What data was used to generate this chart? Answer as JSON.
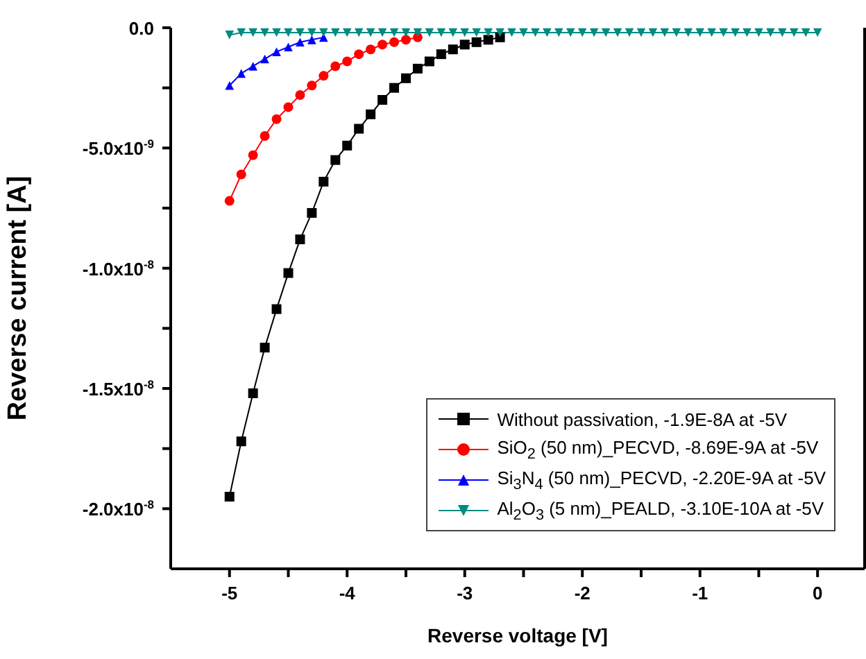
{
  "chart_data": {
    "type": "line",
    "xlabel": "Reverse voltage [V]",
    "ylabel": "Reverse current [A]",
    "x": [
      -5.0,
      -4.9,
      -4.8,
      -4.7,
      -4.6,
      -4.5,
      -4.4,
      -4.3,
      -4.2,
      -4.1,
      -4.0,
      -3.9,
      -3.8,
      -3.7,
      -3.6,
      -3.5,
      -3.4,
      -3.3,
      -3.2,
      -3.1,
      -3.0,
      -2.9,
      -2.8,
      -2.7,
      -2.6,
      -2.5,
      -2.4,
      -2.3,
      -2.2,
      -2.1,
      -2.0,
      -1.9,
      -1.8,
      -1.7,
      -1.6,
      -1.5,
      -1.4,
      -1.3,
      -1.2,
      -1.1,
      -1.0,
      -0.9,
      -0.8,
      -0.7,
      -0.6,
      -0.5,
      -0.4,
      -0.3,
      -0.2,
      -0.1,
      0.0
    ],
    "series": [
      {
        "name": "Without passivation, -1.9E-8A at -5V",
        "color": "#000000",
        "marker": "square",
        "values": [
          -1.95e-08,
          -1.72e-08,
          -1.52e-08,
          -1.33e-08,
          -1.17e-08,
          -1.02e-08,
          -8.8e-09,
          -7.7e-09,
          -6.4e-09,
          -5.5e-09,
          -4.9e-09,
          -4.2e-09,
          -3.6e-09,
          -3e-09,
          -2.5e-09,
          -2.1e-09,
          -1.7e-09,
          -1.4e-09,
          -1.1e-09,
          -9e-10,
          -7e-10,
          -6e-10,
          -5e-10,
          -4e-10,
          null,
          null,
          null,
          null,
          null,
          null,
          null,
          null,
          null,
          null,
          null,
          null,
          null,
          null,
          null,
          null,
          null,
          null,
          null,
          null,
          null,
          null,
          null,
          null,
          null,
          null,
          null
        ]
      },
      {
        "name": "SiO$_{2}$ (50 nm)_PECVD, -8.69E-9A at -5V",
        "color": "#ff0000",
        "marker": "circle",
        "values": [
          -7.2e-09,
          -6.1e-09,
          -5.3e-09,
          -4.5e-09,
          -3.8e-09,
          -3.3e-09,
          -2.8e-09,
          -2.4e-09,
          -2e-09,
          -1.6e-09,
          -1.4e-09,
          -1.1e-09,
          -9e-10,
          -7e-10,
          -6e-10,
          -5e-10,
          -4e-10,
          null,
          null,
          null,
          null,
          null,
          null,
          null,
          null,
          null,
          null,
          null,
          null,
          null,
          null,
          null,
          null,
          null,
          null,
          null,
          null,
          null,
          null,
          null,
          null,
          null,
          null,
          null,
          null,
          null,
          null,
          null,
          null,
          null,
          null
        ]
      },
      {
        "name": "Si$_{3}$N$_{4}$ (50 nm)_PECVD, -2.20E-9A at -5V",
        "color": "#0000ff",
        "marker": "triangle",
        "values": [
          -2.4e-09,
          -1.9e-09,
          -1.6e-09,
          -1.3e-09,
          -1e-09,
          -8e-10,
          -6e-10,
          -5e-10,
          -4e-10,
          null,
          null,
          null,
          null,
          null,
          null,
          null,
          null,
          null,
          null,
          null,
          null,
          null,
          null,
          null,
          null,
          null,
          null,
          null,
          null,
          null,
          null,
          null,
          null,
          null,
          null,
          null,
          null,
          null,
          null,
          null,
          null,
          null,
          null,
          null,
          null,
          null,
          null,
          null,
          null,
          null,
          null
        ]
      },
      {
        "name": "Al$_{2}$O$_{3}$ (5 nm)_PEALD, -3.10E-10A at -5V",
        "color": "#008b80",
        "marker": "triangle-down",
        "values": [
          -3e-10,
          -2e-10,
          -2e-10,
          -2e-10,
          -2e-10,
          -2e-10,
          -2e-10,
          -2e-10,
          -2e-10,
          -2e-10,
          -2e-10,
          -2e-10,
          -2e-10,
          -2e-10,
          -2e-10,
          -2e-10,
          -2e-10,
          -2e-10,
          -2e-10,
          -2e-10,
          -2e-10,
          -2e-10,
          -2e-10,
          -2e-10,
          -2e-10,
          -2e-10,
          -2e-10,
          -2e-10,
          -2e-10,
          -2e-10,
          -2e-10,
          -2e-10,
          -2e-10,
          -2e-10,
          -2e-10,
          -2e-10,
          -2e-10,
          -2e-10,
          -2e-10,
          -2e-10,
          -2e-10,
          -2e-10,
          -2e-10,
          -2e-10,
          -2e-10,
          -2e-10,
          -2e-10,
          -2e-10,
          -2e-10,
          -2e-10,
          -2e-10
        ]
      }
    ],
    "xlim": [
      -5.5,
      0.4
    ],
    "xticks": [
      -5,
      {
        "value": -4.5,
        "label": null
      },
      -4,
      {
        "value": -3.5,
        "label": null
      },
      -3,
      {
        "value": -2.5,
        "label": null
      },
      -2,
      {
        "value": -1.5,
        "label": null
      },
      -1,
      {
        "value": -0.5,
        "label": null
      },
      0
    ],
    "ylim": [
      -2.25e-08,
      0
    ],
    "yticks": [
      {
        "value": -2e-08,
        "label": "-2.0x10$^{-8}$"
      },
      {
        "value": -1.75e-08,
        "label": null
      },
      {
        "value": -1.5e-08,
        "label": "-1.5x10$^{-8}$"
      },
      {
        "value": -1.25e-08,
        "label": null
      },
      {
        "value": -1e-08,
        "label": "-1.0x10$^{-8}$"
      },
      {
        "value": -7.5e-09,
        "label": null
      },
      {
        "value": -5e-09,
        "label": "-5.0x10$^{-9}$"
      },
      {
        "value": -2.5e-09,
        "label": null
      },
      {
        "value": 0,
        "label": "0.0"
      }
    ],
    "legend": "bottom right",
    "line_style": "solid"
  }
}
